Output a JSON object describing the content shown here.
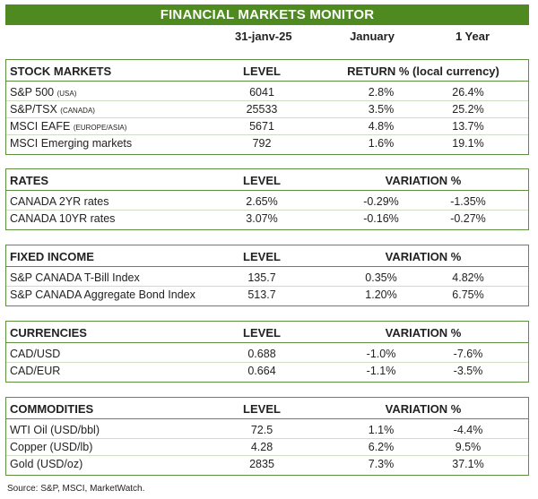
{
  "title": "FINANCIAL MARKETS MONITOR",
  "date_header": {
    "date": "31-janv-25",
    "period1": "January",
    "period2": "1 Year"
  },
  "stocks": {
    "title": "STOCK MARKETS",
    "level": "LEVEL",
    "return_label": "RETURN % (local currency)",
    "rows": [
      {
        "name": "S&P 500",
        "tag": "(USA)",
        "level": "6041",
        "v1": "2.8%",
        "v2": "26.4%"
      },
      {
        "name": "S&P/TSX",
        "tag": "(CANADA)",
        "level": "25533",
        "v1": "3.5%",
        "v2": "25.2%"
      },
      {
        "name": "MSCI EAFE",
        "tag": "(EUROPE/ASIA)",
        "level": "5671",
        "v1": "4.8%",
        "v2": "13.7%"
      },
      {
        "name": "MSCI Emerging markets",
        "tag": "",
        "level": "792",
        "v1": "1.6%",
        "v2": "19.1%"
      }
    ]
  },
  "rates": {
    "title": "RATES",
    "level": "LEVEL",
    "variation_label": "VARIATION %",
    "rows": [
      {
        "name": "CANADA 2YR rates",
        "level": "2.65%",
        "v1": "-0.29%",
        "v2": "-1.35%"
      },
      {
        "name": "CANADA 10YR rates",
        "level": "3.07%",
        "v1": "-0.16%",
        "v2": "-0.27%"
      }
    ]
  },
  "fixed_income": {
    "title": "FIXED INCOME",
    "level": "LEVEL",
    "variation_label": "VARIATION %",
    "rows": [
      {
        "name": "S&P CANADA T-Bill Index",
        "level": "135.7",
        "v1": "0.35%",
        "v2": "4.82%"
      },
      {
        "name": "S&P CANADA Aggregate Bond Index",
        "level": "513.7",
        "v1": "1.20%",
        "v2": "6.75%"
      }
    ]
  },
  "currencies": {
    "title": "CURRENCIES",
    "level": "LEVEL",
    "variation_label": "VARIATION %",
    "rows": [
      {
        "name": "CAD/USD",
        "level": "0.688",
        "v1": "-1.0%",
        "v2": "-7.6%"
      },
      {
        "name": "CAD/EUR",
        "level": "0.664",
        "v1": "-1.1%",
        "v2": "-3.5%"
      }
    ]
  },
  "commodities": {
    "title": "COMMODITIES",
    "level": "LEVEL",
    "variation_label": "VARIATION %",
    "rows": [
      {
        "name": "WTI Oil (USD/bbl)",
        "level": "72.5",
        "v1": "1.1%",
        "v2": "-4.4%"
      },
      {
        "name": "Copper (USD/lb)",
        "level": "4.28",
        "v1": "6.2%",
        "v2": "9.5%"
      },
      {
        "name": "Gold (USD/oz)",
        "level": "2835",
        "v1": "7.3%",
        "v2": "37.1%"
      }
    ]
  },
  "source": "Source: S&P, MSCI, MarketWatch."
}
